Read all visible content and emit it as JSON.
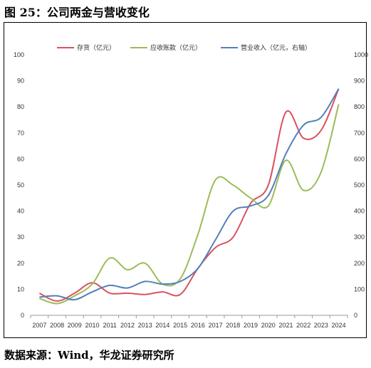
{
  "figure": {
    "title": "图 25：公司两金与营收变化",
    "source": "数据来源：Wind，华龙证券研究所"
  },
  "chart_data": {
    "type": "line",
    "categories": [
      "2007",
      "2008",
      "2009",
      "2010",
      "2011",
      "2012",
      "2013",
      "2014",
      "2015",
      "2016",
      "2017",
      "2018",
      "2019",
      "2020",
      "2021",
      "2022",
      "2023",
      "2024"
    ],
    "left_axis": {
      "ylim": [
        0,
        100
      ],
      "ticks": [
        0,
        10,
        20,
        30,
        40,
        50,
        60,
        70,
        80,
        90,
        100
      ]
    },
    "right_axis": {
      "ylim": [
        0,
        1000
      ],
      "ticks": [
        0,
        100,
        200,
        300,
        400,
        500,
        600,
        700,
        800,
        900,
        1000
      ]
    },
    "grid": false,
    "legend_position": "top",
    "series": [
      {
        "name": "存货（亿元）",
        "axis": "left",
        "color": "#d9535f",
        "values": [
          8.5,
          5.5,
          8.5,
          12.5,
          8.5,
          8.5,
          8.0,
          9.0,
          8.0,
          18.0,
          26.0,
          30.0,
          43.0,
          50.0,
          78.0,
          68.0,
          71.0,
          87.0
        ]
      },
      {
        "name": "应收账款（亿元）",
        "axis": "left",
        "color": "#9cbb59",
        "values": [
          6.5,
          4.5,
          7.5,
          12.0,
          22.0,
          17.5,
          20.0,
          12.0,
          14.0,
          31.0,
          52.0,
          50.0,
          45.0,
          42.0,
          59.5,
          48.0,
          55.0,
          81.0
        ]
      },
      {
        "name": "营业收入（亿元，右轴）",
        "axis": "right",
        "color": "#5280b8",
        "values": [
          70,
          75,
          60,
          90,
          115,
          105,
          130,
          120,
          130,
          180,
          290,
          400,
          420,
          460,
          620,
          730,
          760,
          870
        ]
      }
    ]
  }
}
